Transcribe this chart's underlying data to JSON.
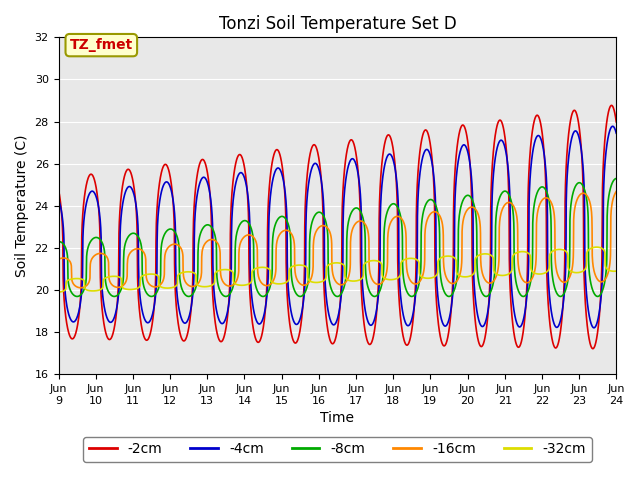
{
  "title": "Tonzi Soil Temperature Set D",
  "xlabel": "Time",
  "ylabel": "Soil Temperature (C)",
  "ylim": [
    16,
    32
  ],
  "xlim_days": [
    9,
    24
  ],
  "x_tick_labels": [
    "Jun 9",
    "Jun 10Jun",
    "11Jun",
    "12Jun",
    "13Jun",
    "14Jun",
    "15Jun",
    "16Jun",
    "17Jun",
    "18Jun",
    "19Jun",
    "20Jun",
    "21Jun",
    "22Jun",
    "23Jun",
    "24"
  ],
  "series": [
    {
      "label": "-2cm",
      "color": "#dd0000"
    },
    {
      "label": "-4cm",
      "color": "#0000cc"
    },
    {
      "label": "-8cm",
      "color": "#00aa00"
    },
    {
      "label": "-16cm",
      "color": "#ff8800"
    },
    {
      "label": "-32cm",
      "color": "#dddd00"
    }
  ],
  "annotation_text": "TZ_fmet",
  "annotation_box_facecolor": "#ffffcc",
  "annotation_text_color": "#cc0000",
  "annotation_edge_color": "#999900",
  "background_color": "#e8e8e8",
  "title_fontsize": 12,
  "axis_label_fontsize": 10,
  "tick_fontsize": 8,
  "legend_fontsize": 10,
  "linewidth": 1.2
}
